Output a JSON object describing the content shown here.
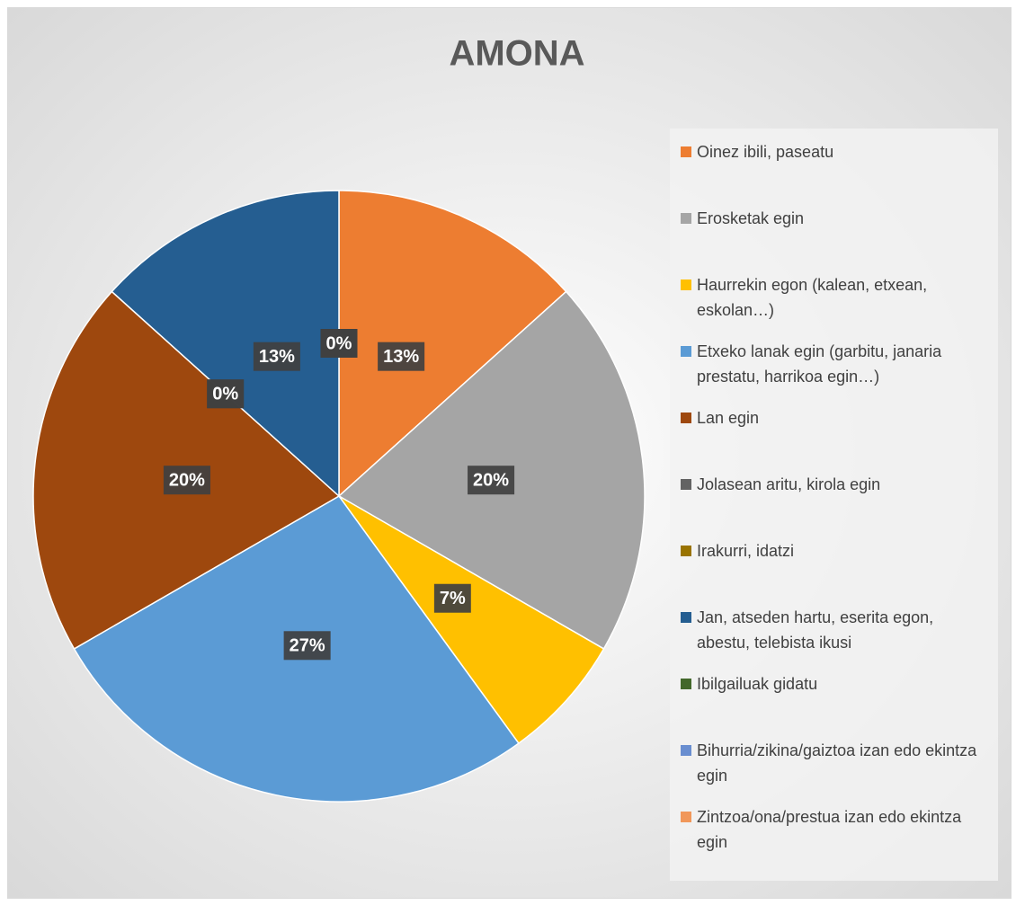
{
  "chart_data": {
    "type": "pie",
    "title": "AMONA",
    "categories": [
      "Oinez ibili, paseatu",
      "Erosketak egin",
      "Haurrekin egon (kalean, etxean, eskolan…)",
      "Etxeko lanak egin (garbitu, janaria prestatu, harrikoa egin…)",
      "Lan egin",
      "Jolasean aritu, kirola egin",
      "Irakurri, idatzi",
      "Jan, atseden hartu, eserita egon, abestu, telebista ikusi",
      "Ibilgailuak gidatu",
      "Bihurria/zikina/gaiztoa izan edo ekintza egin",
      "Zintzoa/ona/prestua izan edo ekintza egin"
    ],
    "values": [
      13.33,
      20,
      6.67,
      26.67,
      20,
      0,
      0,
      13.33,
      0,
      0,
      0
    ],
    "value_labels": [
      "13%",
      "20%",
      "7%",
      "27%",
      "20%",
      "0%",
      "0%",
      "13%",
      "0%",
      "0%",
      "0%"
    ],
    "colors": [
      "#ed7d31",
      "#a5a5a5",
      "#ffc000",
      "#5b9bd5",
      "#9e480e",
      "#636363",
      "#997300",
      "#255e91",
      "#43682b",
      "#698ed0",
      "#f1975a"
    ],
    "legend": "right"
  }
}
